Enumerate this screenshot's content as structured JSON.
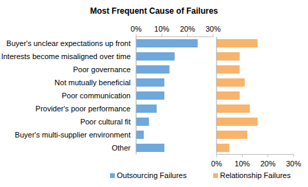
{
  "chart_data": {
    "type": "bar",
    "title": "Most Frequent Cause of Failures",
    "orientation": "horizontal",
    "categories": [
      "Buyer's unclear expectations up front",
      "Interests become misaligned over time",
      "Poor governance",
      "Not mutually beneficial",
      "Poor communication",
      "Provider's poor performance",
      "Poor cultural fit",
      "Buyer's multi-supplier environment",
      "Other"
    ],
    "series": [
      {
        "name": "Outsourcing Failures",
        "color": "#6fa8dc",
        "values": [
          24,
          15,
          13,
          11,
          11,
          8,
          5,
          3,
          11
        ]
      },
      {
        "name": "Relationship Failures",
        "color": "#f9b46b",
        "values": [
          16,
          9,
          9,
          11,
          9,
          13,
          16,
          12,
          5
        ]
      }
    ],
    "xlim": [
      0,
      30
    ],
    "xticks": [
      {
        "value": 0,
        "label": "0%"
      },
      {
        "value": 10,
        "label": "10%"
      },
      {
        "value": 20,
        "label": "20%"
      },
      {
        "value": 30,
        "label": "30%"
      }
    ],
    "legend": "bottom"
  }
}
